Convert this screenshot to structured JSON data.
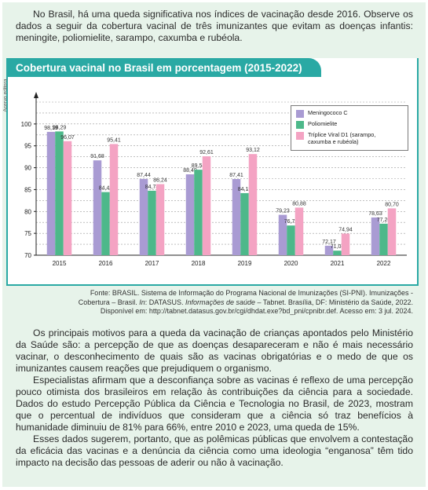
{
  "intro": {
    "text": "No Brasil, há uma queda significativa nos índices de vacinação desde 2016. Observe os dados a seguir da cobertura vacinal de três imunizantes que evitam as doenças infantis: meningite, poliomielite, sarampo, caxumba e rubéola."
  },
  "chart_box": {
    "title": "Cobertura vacinal no Brasil em porcentagem (2015-2022)",
    "credit": "Acervo editora"
  },
  "colors": {
    "header": "#2aa9a4",
    "background": "#e7f3ea",
    "meningococo": "#a99bd3",
    "poliomielite": "#4db88a",
    "triplice": "#f4a3c3"
  },
  "chart_data": {
    "type": "bar",
    "categories": [
      "2015",
      "2016",
      "2017",
      "2018",
      "2019",
      "2020",
      "2021",
      "2022"
    ],
    "series": [
      {
        "name": "Meningococo C",
        "color": "#a99bd3",
        "values": [
          98.19,
          91.68,
          87.44,
          88.49,
          87.41,
          79.23,
          72.17,
          78.63
        ],
        "labels": [
          "98,19",
          "91,68",
          "87,44",
          "88,49",
          "87,41",
          "79,23",
          "72,17",
          "78,63"
        ]
      },
      {
        "name": "Poliomielite",
        "color": "#4db88a",
        "values": [
          98.29,
          84.43,
          84.74,
          89.54,
          84.19,
          76.79,
          71.04,
          77.2
        ],
        "labels": [
          "98,29",
          "84,43",
          "84,74",
          "89,54",
          "84,19",
          "76,79",
          "71,04",
          "77,20"
        ]
      },
      {
        "name": "Tríplice Viral D1 (sarampo, caxumba e rubéola)",
        "color": "#f4a3c3",
        "values": [
          96.07,
          95.41,
          86.24,
          92.61,
          93.12,
          80.88,
          74.94,
          80.7
        ],
        "labels": [
          "96,07",
          "95,41",
          "86,24",
          "92,61",
          "93,12",
          "80,88",
          "74,94",
          "80,70"
        ]
      }
    ],
    "yticks": [
      "70",
      "75",
      "80",
      "85",
      "90",
      "95",
      "100"
    ],
    "ylim": [
      70,
      105
    ],
    "grid": true,
    "legend_position": "top-right"
  },
  "legend": {
    "item1": "Meningococo C",
    "item2": "Poliomielite",
    "item3": "Tríplice Viral D1 (sarampo, caxumba e rubéola)"
  },
  "source": {
    "line1": "Fonte: BRASIL. Sistema de Informação do Programa Nacional de Imunizações (SI-PNI). Imunizações -",
    "line2_a": "Cobertura – Brasil. ",
    "line2_in": "In",
    "line2_b": ": DATASUS. ",
    "line2_italic": "Informações de saúde",
    "line2_c": " – Tabnet. Brasília, DF: Ministério da Saúde, 2022.",
    "line3": "Disponível em: http://tabnet.datasus.gov.br/cgi/dhdat.exe?bd_pni/cpnibr.def. Acesso em: 3 jul. 2024."
  },
  "body": {
    "p1": "Os principais motivos para a queda da vacinação de crianças apontados pelo Ministério da Saúde são: a percepção de que as doenças desapareceram e não é mais necessário vacinar, o desconhecimento de quais são as vacinas obrigatórias e o medo de que os imunizantes causem reações que prejudiquem o organismo.",
    "p2": "Especialistas afirmam que a desconfiança sobre as vacinas é reflexo de uma percepção pouco otimista dos brasileiros em relação às contribuições da ciência para a sociedade. Dados do estudo Percepção Pública da Ciência e Tecnologia no Brasil, de 2023, mostram que o percentual de indivíduos que consideram que a ciência só traz benefícios à humanidade diminuiu de 81% para 66%, entre 2010 e 2023, uma queda de 15%.",
    "p3": "Esses dados sugerem, portanto, que as polêmicas públicas que envolvem a contestação da eficácia das vacinas e a denúncia da ciência como uma ideologia “enganosa” têm tido impacto na decisão das pessoas de aderir ou não à vacinação."
  }
}
